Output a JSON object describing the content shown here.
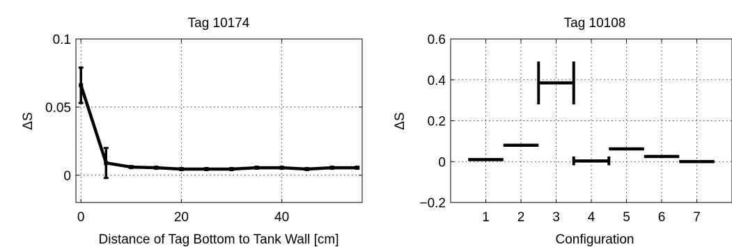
{
  "chart_data": [
    {
      "type": "line",
      "title": "Tag 10174",
      "xlabel": "Distance of Tag Bottom to Tank Wall [cm]",
      "ylabel": "ΔS",
      "xlim": [
        -1,
        56
      ],
      "ylim": [
        -0.02,
        0.1
      ],
      "xticks": [
        "0",
        "20",
        "40"
      ],
      "xtick_values": [
        0,
        20,
        40
      ],
      "yticks": [
        "0",
        "0.05",
        "0.1"
      ],
      "ytick_values": [
        0,
        0.05,
        0.1
      ],
      "grid": true,
      "series": [
        {
          "x": [
            0,
            5,
            10,
            15,
            20,
            25,
            30,
            35,
            40,
            45,
            50,
            55
          ],
          "y": [
            0.066,
            0.009,
            0.006,
            0.0055,
            0.0045,
            0.0045,
            0.0045,
            0.0055,
            0.0055,
            0.0045,
            0.0055,
            0.0055
          ],
          "err_low": [
            0.053,
            -0.002,
            0.0055,
            0.005,
            0.004,
            0.004,
            0.004,
            0.005,
            0.005,
            0.004,
            0.005,
            0.005
          ],
          "err_high": [
            0.079,
            0.02,
            0.0065,
            0.006,
            0.005,
            0.005,
            0.005,
            0.006,
            0.006,
            0.005,
            0.006,
            0.006
          ],
          "color": "#000000"
        }
      ]
    },
    {
      "type": "bar",
      "title": "Tag 10108",
      "xlabel": "Configuration",
      "ylabel": "ΔS",
      "categories": [
        "1",
        "2",
        "3",
        "4",
        "5",
        "6",
        "7"
      ],
      "xlim": [
        0,
        8
      ],
      "ylim": [
        -0.2,
        0.6
      ],
      "yticks": [
        "−0.2",
        "0",
        "0.2",
        "0.4",
        "0.6"
      ],
      "ytick_values": [
        -0.2,
        0,
        0.2,
        0.4,
        0.6
      ],
      "grid": true,
      "values": [
        0.01,
        0.08,
        0.385,
        0.003,
        0.062,
        0.025,
        0.0
      ],
      "err_low": [
        null,
        null,
        0.28,
        -0.018,
        null,
        null,
        null
      ],
      "err_high": [
        null,
        null,
        0.49,
        0.025,
        null,
        null,
        null
      ],
      "color": "#000000"
    }
  ]
}
